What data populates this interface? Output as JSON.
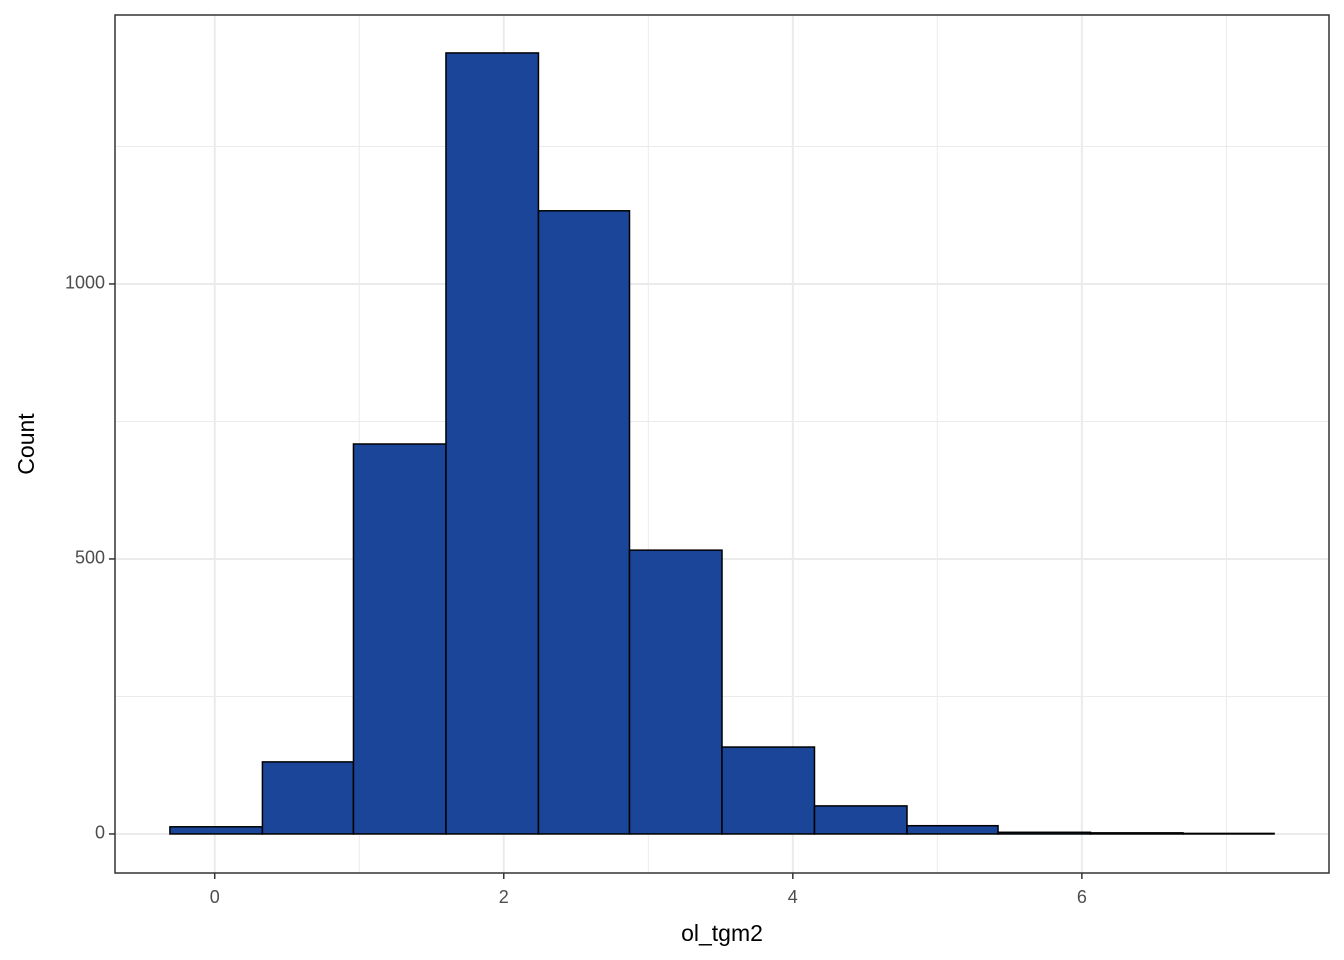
{
  "chart_data": {
    "type": "histogram",
    "x_label": "ol_tgm2",
    "y_label": "Count",
    "bins": [
      -0.31,
      0.33,
      0.96,
      1.6,
      2.24,
      2.87,
      3.51,
      4.15,
      4.79,
      5.42,
      6.06,
      6.7,
      7.33
    ],
    "counts": [
      13,
      131,
      709,
      1420,
      1133,
      516,
      158,
      51,
      15,
      3,
      2,
      1
    ],
    "color": "#1a4599",
    "edge_color": "#000000",
    "xlim": [
      -0.69,
      7.71
    ],
    "xticks": [
      0,
      2,
      4,
      6
    ],
    "ylim": [
      -71,
      1489
    ],
    "yticks": [
      0,
      500,
      1000
    ],
    "x_minor_grid": [
      1,
      3,
      5,
      7
    ],
    "y_minor_grid": [
      250,
      750,
      1250
    ],
    "grid": true
  }
}
